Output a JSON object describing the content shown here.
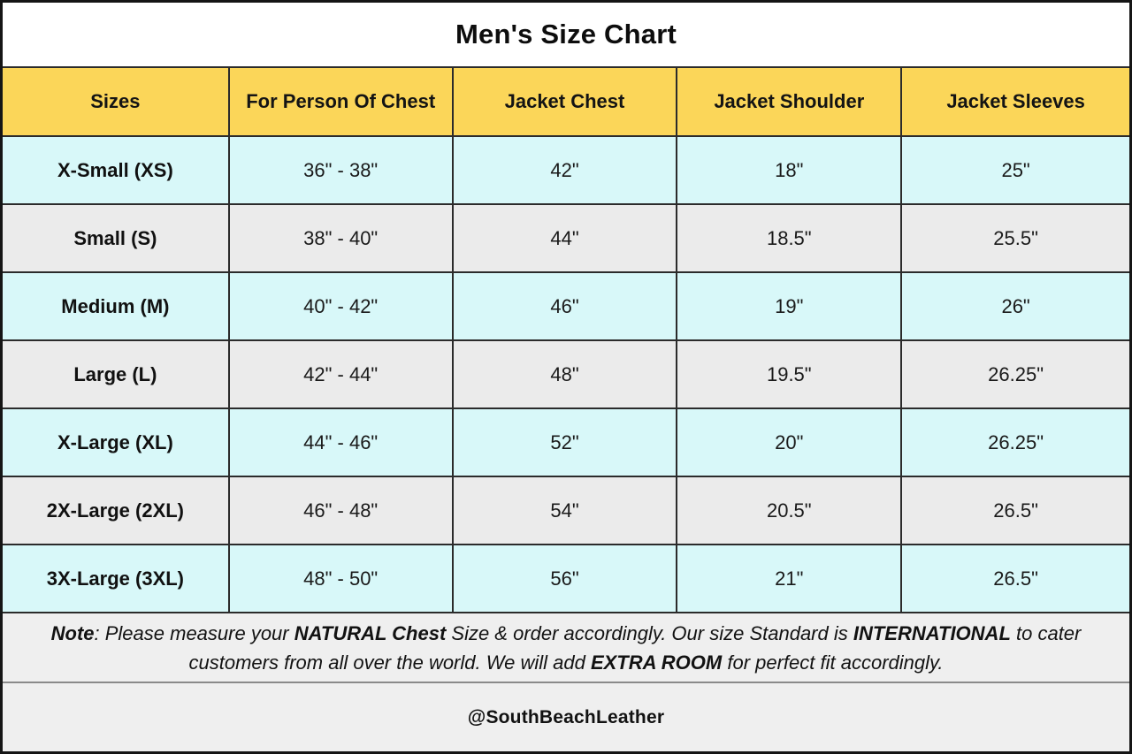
{
  "title": "Men's Size Chart",
  "colors": {
    "header_bg": "#FBD659",
    "row_blue": "#D8F8F9",
    "row_gray": "#EBEBEB",
    "note_bg": "#EFEFEF",
    "border_dark": "#2B2B2B"
  },
  "table": {
    "headers": [
      "Sizes",
      "For Person Of Chest",
      "Jacket Chest",
      "Jacket Shoulder",
      "Jacket Sleeves"
    ],
    "rows": [
      {
        "size": "X-Small (XS)",
        "for_person_of_chest": "36\" - 38\"",
        "jacket_chest": "42\"",
        "jacket_shoulder": "18\"",
        "jacket_sleeves": "25\""
      },
      {
        "size": "Small (S)",
        "for_person_of_chest": "38\" - 40\"",
        "jacket_chest": "44\"",
        "jacket_shoulder": "18.5\"",
        "jacket_sleeves": "25.5\""
      },
      {
        "size": "Medium (M)",
        "for_person_of_chest": "40\" - 42\"",
        "jacket_chest": "46\"",
        "jacket_shoulder": "19\"",
        "jacket_sleeves": "26\""
      },
      {
        "size": "Large (L)",
        "for_person_of_chest": "42\" - 44\"",
        "jacket_chest": "48\"",
        "jacket_shoulder": "19.5\"",
        "jacket_sleeves": "26.25\""
      },
      {
        "size": "X-Large (XL)",
        "for_person_of_chest": "44\" - 46\"",
        "jacket_chest": "52\"",
        "jacket_shoulder": "20\"",
        "jacket_sleeves": "26.25\""
      },
      {
        "size": "2X-Large (2XL)",
        "for_person_of_chest": "46\" - 48\"",
        "jacket_chest": "54\"",
        "jacket_shoulder": "20.5\"",
        "jacket_sleeves": "26.5\""
      },
      {
        "size": "3X-Large (3XL)",
        "for_person_of_chest": "48\" - 50\"",
        "jacket_chest": "56\"",
        "jacket_shoulder": "21\"",
        "jacket_sleeves": "26.5\""
      }
    ]
  },
  "note": {
    "label": "Note",
    "part_1": ": Please measure your ",
    "bold_1": "NATURAL Chest",
    "part_2": " Size & order accordingly. Our size Standard is ",
    "bold_2": "INTERNATIONAL",
    "part_3": " to cater customers from all over the world. We will add ",
    "bold_3": "EXTRA ROOM",
    "part_4": " for perfect fit accordingly."
  },
  "footer": {
    "handle": "@SouthBeachLeather"
  }
}
